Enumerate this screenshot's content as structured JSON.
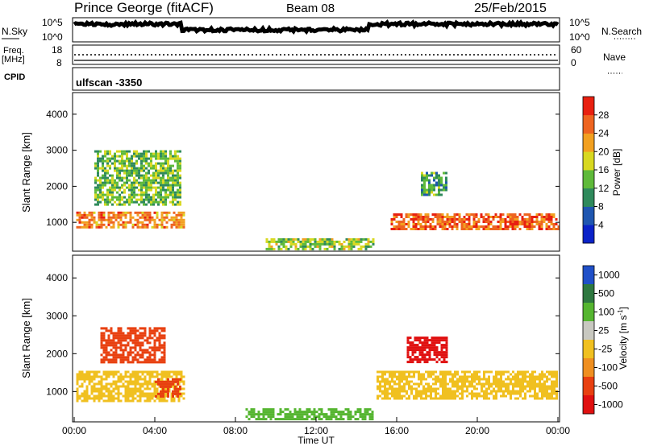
{
  "header": {
    "station": "Prince George (fitACF)",
    "beam": "Beam 08",
    "date": "25/Feb/2015"
  },
  "noise_panel": {
    "left_label": "N.Sky",
    "left_top_tick": "10^5",
    "left_bottom_tick": "10^0",
    "right_top_tick": "10^5",
    "right_bottom_tick": "10^0",
    "right_label": "N.Search"
  },
  "freq_panel": {
    "left_label_1": "Freq.",
    "left_label_2": "[MHz]",
    "left_top_tick": "18",
    "left_bottom_tick": "8",
    "right_top_tick": "60",
    "right_bottom_tick": "0",
    "right_label": "Nave"
  },
  "cpid_panel": {
    "label": "CPID",
    "value": "ulfscan  -3350"
  },
  "chart_data": [
    {
      "type": "heatmap",
      "quantity": "Power",
      "ylabel": "Slant Range [km]",
      "yticks": [
        "1000",
        "2000",
        "3000",
        "4000"
      ],
      "ylim": [
        200,
        4600
      ],
      "colorbar_label": "Power [dB]",
      "colorbar_ticks": [
        "4",
        "8",
        "12",
        "16",
        "20",
        "24",
        "28"
      ],
      "colors": [
        "#0a22c8",
        "#1f56b0",
        "#2f8a5c",
        "#5fba3a",
        "#d8d820",
        "#f2a020",
        "#ee6420",
        "#e82010"
      ],
      "features": [
        {
          "name": "band-a",
          "t_start": 0.1,
          "t_end": 5.5,
          "range_start": 840,
          "range_end": 1300,
          "power": 24
        },
        {
          "name": "band-b",
          "t_start": 15.7,
          "t_end": 24.0,
          "range_start": 800,
          "range_end": 1250,
          "power": 26
        },
        {
          "name": "high-patch",
          "t_start": 1.0,
          "t_end": 5.3,
          "range_start": 1500,
          "range_end": 3000,
          "power": 14
        },
        {
          "name": "late-patch",
          "t_start": 17.2,
          "t_end": 18.5,
          "range_start": 1750,
          "range_end": 2400,
          "power": 12
        },
        {
          "name": "midday-arc",
          "t_start": 9.5,
          "t_end": 14.8,
          "range_start": 280,
          "range_end": 560,
          "power": 16
        }
      ]
    },
    {
      "type": "heatmap",
      "quantity": "Velocity",
      "ylabel": "Slant Range [km]",
      "yticks": [
        "1000",
        "2000",
        "3000",
        "4000"
      ],
      "ylim": [
        200,
        4600
      ],
      "xlabel": "Time UT",
      "xticks": [
        "00:00",
        "04:00",
        "08:00",
        "12:00",
        "16:00",
        "20:00",
        "00:00"
      ],
      "xlim": [
        0,
        24
      ],
      "colorbar_label": "Velocity [m s",
      "colorbar_label_exponent": "-1",
      "colorbar_label_close": "]",
      "colorbar_ticks": [
        "1000",
        "500",
        "100",
        "25",
        "-25",
        "-100",
        "-500",
        "-1000"
      ],
      "colors": [
        "#2050c8",
        "#2e7840",
        "#55b530",
        "#c8c8c0",
        "#f0c020",
        "#ef8f20",
        "#e84010",
        "#e01010"
      ],
      "features": [
        {
          "name": "grey-band-a",
          "t_start": 0.1,
          "t_end": 5.5,
          "range_start": 750,
          "range_end": 1550,
          "velocity": 0
        },
        {
          "name": "grey-band-b",
          "t_start": 15.0,
          "t_end": 24.0,
          "range_start": 800,
          "range_end": 1550,
          "velocity": 0
        },
        {
          "name": "orange-patch",
          "t_start": 1.3,
          "t_end": 4.5,
          "range_start": 1750,
          "range_end": 2700,
          "velocity": -300
        },
        {
          "name": "orange-low",
          "t_start": 4.0,
          "t_end": 5.3,
          "range_start": 900,
          "range_end": 1350,
          "velocity": -400
        },
        {
          "name": "red-patch",
          "t_start": 16.5,
          "t_end": 18.5,
          "range_start": 1800,
          "range_end": 2450,
          "velocity": -700
        },
        {
          "name": "green-arc",
          "t_start": 8.5,
          "t_end": 14.8,
          "range_start": 300,
          "range_end": 560,
          "velocity": 120
        }
      ]
    }
  ]
}
